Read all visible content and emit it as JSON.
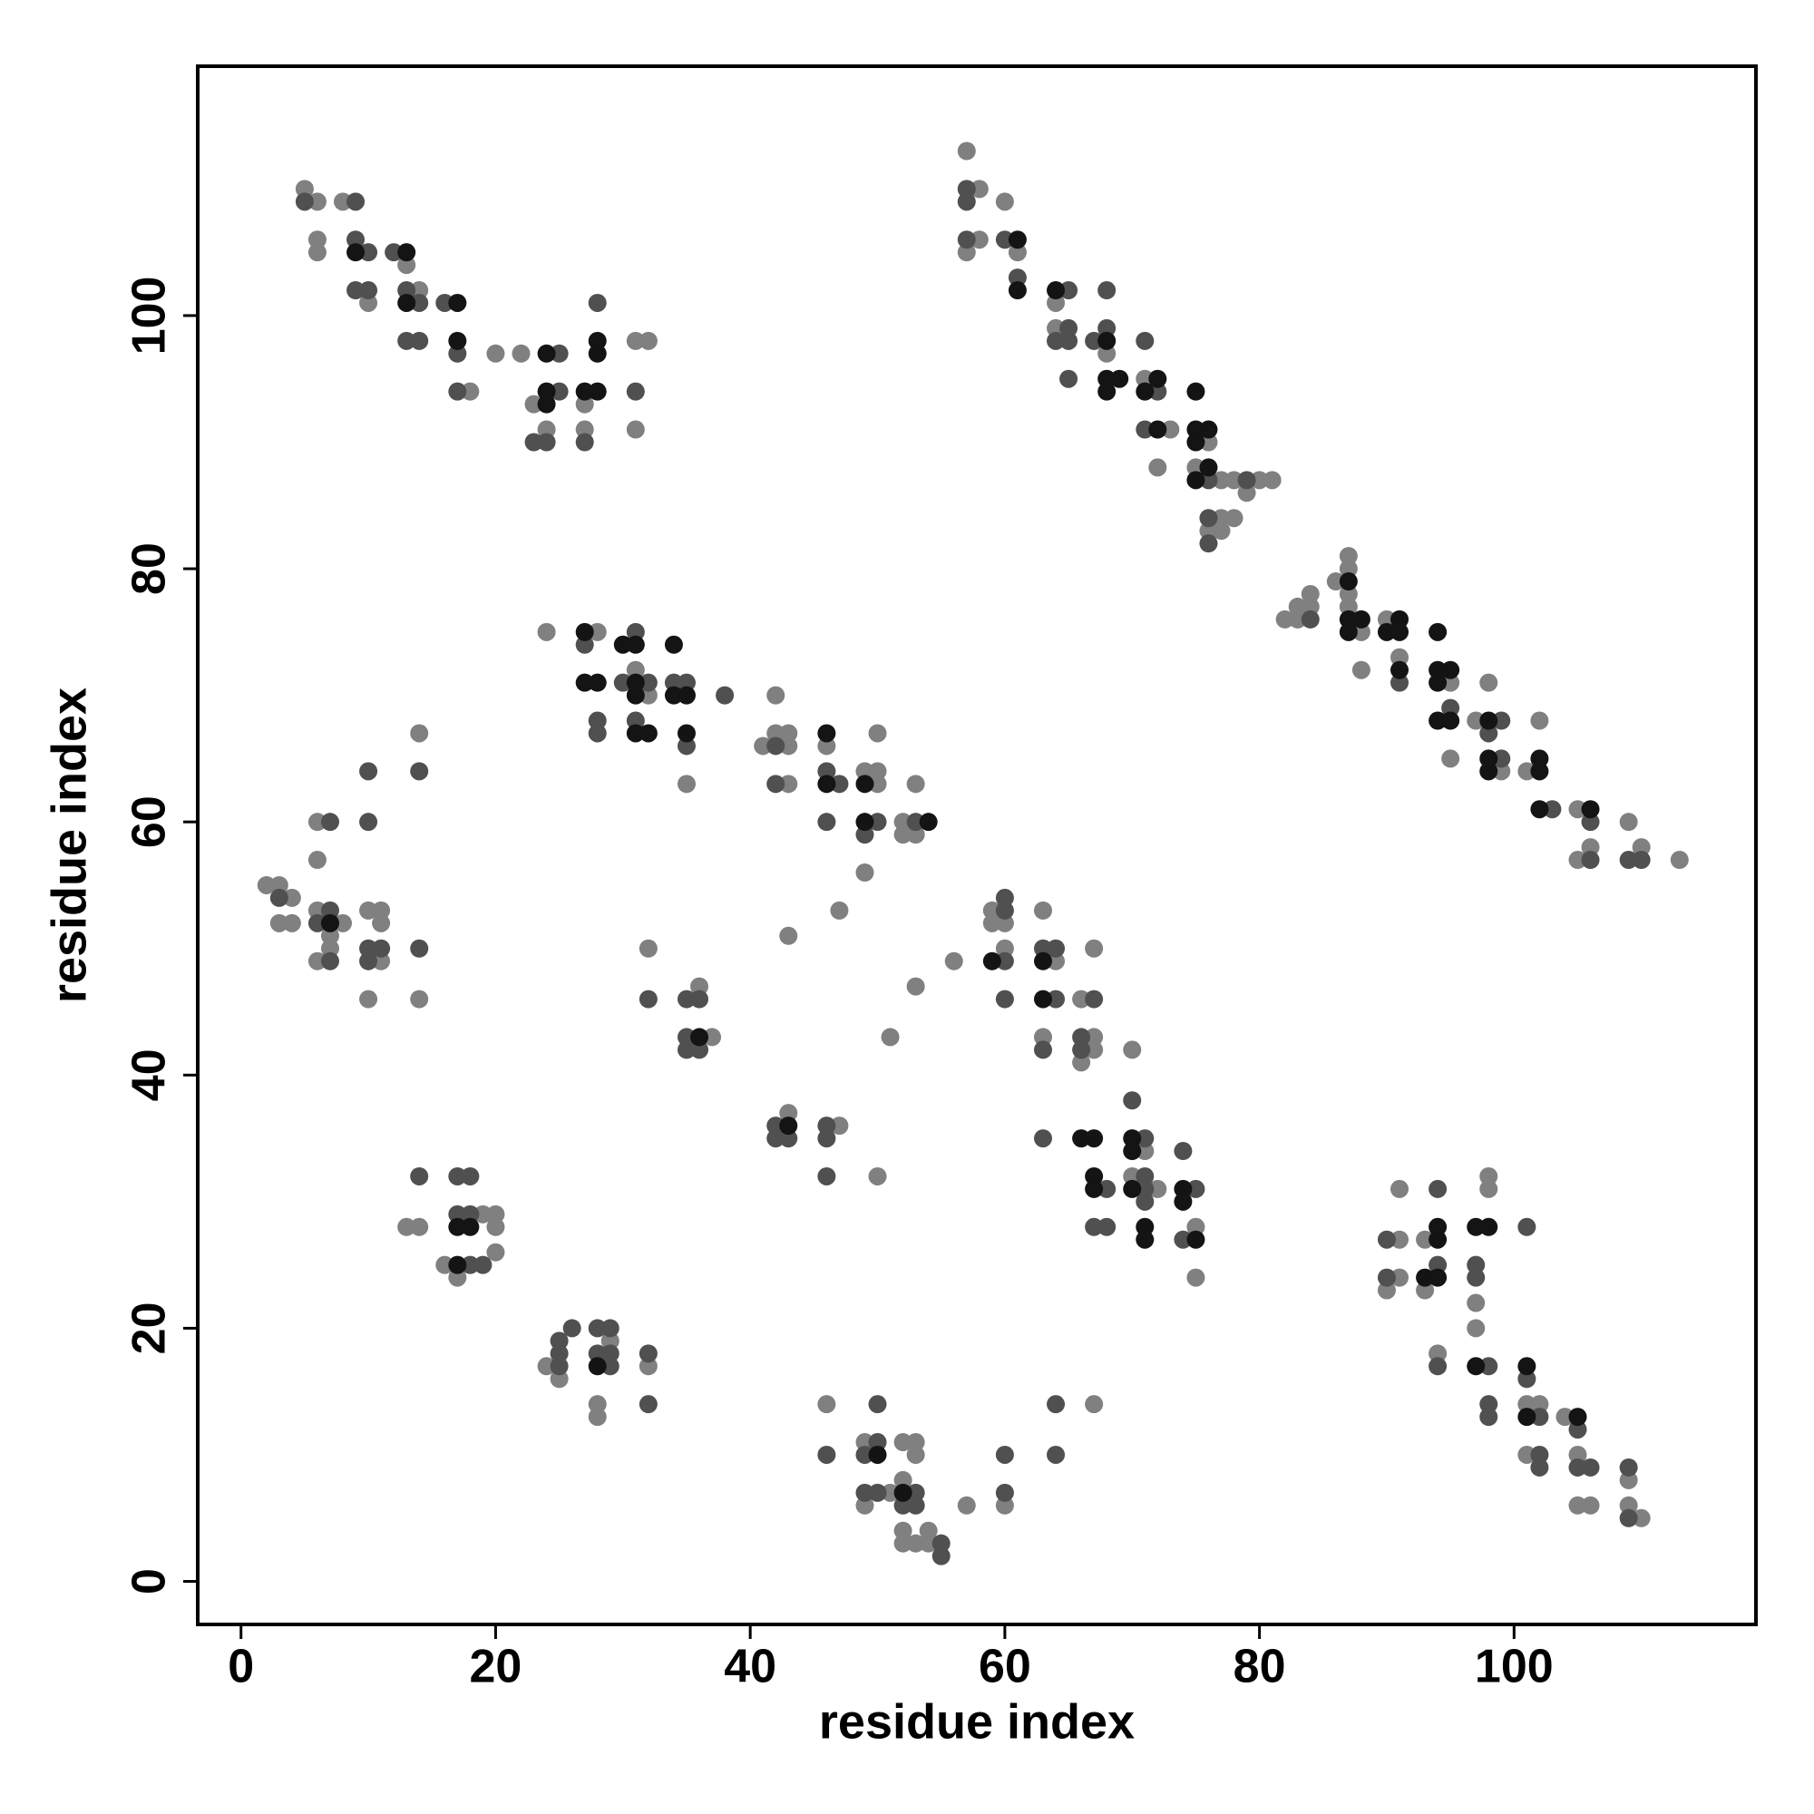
{
  "chart_data": {
    "type": "scatter",
    "x_label": "residue index",
    "y_label": "residue index",
    "xlim": [
      -3.4,
      119
    ],
    "ylim": [
      -3.4,
      119.7
    ],
    "xticks": [
      0,
      20,
      40,
      60,
      80,
      100
    ],
    "yticks": [
      0,
      20,
      40,
      60,
      80,
      100
    ],
    "series": [
      {
        "color": "#808080",
        "x": [
          5,
          6,
          8,
          6,
          6,
          13,
          10,
          14,
          18,
          20,
          22,
          23,
          24,
          27,
          27,
          31,
          32,
          31,
          57,
          58,
          60,
          57,
          58,
          61,
          64,
          64,
          68,
          71,
          73,
          72,
          76,
          75,
          77,
          78,
          80,
          81,
          79,
          77,
          78,
          76,
          77,
          82,
          83,
          83,
          84,
          84,
          86,
          87,
          87,
          87,
          87,
          88,
          88,
          90,
          91,
          95,
          95,
          97,
          98,
          99,
          101,
          102,
          105,
          106,
          105,
          109,
          110,
          113,
          24,
          28,
          31,
          32,
          35,
          42,
          41,
          42,
          43,
          43,
          43,
          46,
          49,
          50,
          50,
          50,
          49,
          47,
          52,
          52,
          53,
          53,
          2,
          3,
          4,
          3,
          4,
          6,
          8,
          7,
          7,
          6,
          6,
          6,
          10,
          11,
          11,
          11,
          10,
          14,
          14,
          32,
          36,
          37,
          43,
          43,
          47,
          50,
          51,
          53,
          56,
          59,
          59,
          60,
          60,
          63,
          64,
          66,
          67,
          63,
          67,
          66,
          67,
          70,
          71,
          70,
          72,
          75,
          75,
          13,
          14,
          19,
          20,
          20,
          20,
          16,
          17,
          24,
          25,
          29,
          32,
          28,
          28,
          46,
          49,
          52,
          53,
          53,
          51,
          52,
          49,
          52,
          52,
          53,
          54,
          54,
          57,
          60,
          67,
          91,
          91,
          91,
          90,
          93,
          93,
          98,
          98,
          97,
          97,
          94,
          101,
          102,
          104,
          101,
          105,
          109,
          105,
          106,
          109,
          110
        ],
        "y": [
          110,
          109,
          109,
          106,
          105,
          104,
          101,
          102,
          94,
          97,
          97,
          93,
          91,
          93,
          91,
          98,
          98,
          91,
          113,
          110,
          109,
          105,
          106,
          105,
          101,
          99,
          97,
          95,
          91,
          88,
          90,
          88,
          87,
          87,
          87,
          87,
          86,
          84,
          84,
          83,
          83,
          76,
          76,
          77,
          77,
          78,
          79,
          81,
          80,
          78,
          77,
          75,
          72,
          76,
          73,
          71,
          65,
          68,
          71,
          64,
          64,
          68,
          61,
          58,
          57,
          60,
          58,
          57,
          75,
          75,
          72,
          70,
          63,
          70,
          66,
          67,
          67,
          66,
          63,
          66,
          64,
          64,
          63,
          67,
          56,
          53,
          60,
          59,
          59,
          63,
          55,
          55,
          54,
          52,
          52,
          53,
          52,
          51,
          50,
          49,
          57,
          60,
          53,
          53,
          49,
          52,
          46,
          67,
          46,
          50,
          47,
          43,
          51,
          37,
          36,
          32,
          43,
          47,
          49,
          53,
          52,
          52,
          50,
          53,
          49,
          46,
          50,
          43,
          43,
          41,
          42,
          42,
          34,
          32,
          31,
          28,
          24,
          28,
          28,
          29,
          29,
          28,
          26,
          25,
          24,
          17,
          16,
          19,
          17,
          14,
          13,
          14,
          11,
          11,
          11,
          10,
          7,
          8,
          6,
          4,
          3,
          3,
          4,
          3,
          6,
          6,
          14,
          31,
          27,
          24,
          23,
          27,
          23,
          31,
          32,
          22,
          20,
          18,
          14,
          14,
          13,
          10,
          10,
          8,
          6,
          6,
          6,
          5
        ]
      },
      {
        "color": "#505050",
        "x": [
          5,
          9,
          9,
          10,
          12,
          9,
          10,
          13,
          14,
          16,
          13,
          14,
          17,
          17,
          25,
          25,
          23,
          24,
          27,
          28,
          31,
          57,
          57,
          57,
          60,
          61,
          65,
          68,
          65,
          64,
          65,
          67,
          68,
          65,
          71,
          72,
          71,
          76,
          79,
          76,
          76,
          84,
          91,
          95,
          99,
          98,
          99,
          103,
          106,
          106,
          109,
          110,
          27,
          31,
          30,
          32,
          34,
          35,
          38,
          28,
          28,
          31,
          35,
          42,
          42,
          46,
          47,
          46,
          50,
          49,
          53,
          3,
          7,
          6,
          7,
          10,
          10,
          7,
          10,
          11,
          10,
          14,
          14,
          32,
          35,
          36,
          35,
          35,
          36,
          42,
          42,
          43,
          46,
          46,
          46,
          60,
          60,
          60,
          60,
          63,
          64,
          64,
          67,
          63,
          66,
          66,
          63,
          70,
          71,
          68,
          71,
          71,
          71,
          74,
          75,
          67,
          68,
          74,
          14,
          17,
          18,
          17,
          18,
          18,
          19,
          26,
          25,
          25,
          25,
          28,
          29,
          28,
          29,
          29,
          32,
          32,
          46,
          50,
          49,
          50,
          49,
          50,
          53,
          52,
          53,
          55,
          55,
          60,
          60,
          64,
          64,
          90,
          90,
          94,
          94,
          97,
          97,
          94,
          98,
          101,
          101,
          98,
          98,
          102,
          105,
          102,
          102,
          105,
          106,
          109,
          109
        ],
        "y": [
          109,
          109,
          106,
          105,
          105,
          102,
          102,
          102,
          101,
          101,
          98,
          98,
          97,
          94,
          97,
          94,
          90,
          90,
          90,
          101,
          94,
          110,
          109,
          106,
          106,
          103,
          102,
          102,
          99,
          98,
          98,
          98,
          99,
          95,
          98,
          94,
          91,
          87,
          87,
          84,
          82,
          76,
          71,
          69,
          68,
          67,
          65,
          61,
          60,
          57,
          57,
          57,
          74,
          75,
          71,
          71,
          71,
          71,
          70,
          68,
          67,
          68,
          66,
          66,
          63,
          64,
          63,
          60,
          60,
          59,
          60,
          54,
          53,
          52,
          49,
          64,
          60,
          60,
          50,
          50,
          49,
          64,
          50,
          46,
          46,
          46,
          43,
          42,
          42,
          36,
          35,
          35,
          36,
          35,
          32,
          53,
          54,
          49,
          46,
          50,
          50,
          46,
          46,
          42,
          43,
          42,
          35,
          38,
          35,
          31,
          32,
          31,
          30,
          34,
          31,
          28,
          28,
          27,
          32,
          32,
          32,
          29,
          29,
          25,
          25,
          20,
          19,
          18,
          17,
          20,
          20,
          18,
          18,
          17,
          18,
          14,
          10,
          11,
          10,
          14,
          7,
          7,
          7,
          6,
          6,
          3,
          2,
          10,
          7,
          14,
          10,
          27,
          24,
          31,
          25,
          25,
          24,
          17,
          17,
          28,
          16,
          14,
          13,
          13,
          12,
          10,
          9,
          9,
          9,
          9,
          5
        ]
      },
      {
        "color": "#141414",
        "x": [
          9,
          13,
          13,
          17,
          17,
          24,
          24,
          24,
          27,
          28,
          28,
          28,
          61,
          61,
          64,
          68,
          68,
          69,
          68,
          72,
          71,
          72,
          75,
          75,
          76,
          75,
          76,
          75,
          87,
          87,
          87,
          88,
          90,
          91,
          91,
          91,
          94,
          94,
          94,
          95,
          94,
          95,
          98,
          98,
          98,
          102,
          102,
          102,
          106,
          27,
          30,
          31,
          34,
          27,
          28,
          31,
          31,
          34,
          35,
          31,
          32,
          35,
          46,
          46,
          49,
          49,
          54,
          7,
          36,
          43,
          59,
          63,
          63,
          66,
          67,
          70,
          70,
          67,
          67,
          70,
          74,
          74,
          71,
          71,
          75,
          17,
          18,
          17,
          28,
          50,
          52,
          93,
          94,
          94,
          94,
          97,
          98,
          97,
          101,
          101,
          105
        ],
        "y": [
          105,
          105,
          101,
          101,
          98,
          97,
          94,
          93,
          94,
          94,
          98,
          97,
          106,
          102,
          102,
          98,
          95,
          95,
          94,
          95,
          94,
          91,
          94,
          91,
          91,
          90,
          88,
          87,
          79,
          76,
          75,
          76,
          75,
          76,
          75,
          72,
          75,
          72,
          71,
          72,
          68,
          68,
          68,
          65,
          64,
          65,
          64,
          61,
          61,
          75,
          74,
          74,
          74,
          71,
          71,
          71,
          70,
          70,
          70,
          67,
          67,
          67,
          67,
          63,
          63,
          60,
          60,
          52,
          43,
          36,
          49,
          49,
          46,
          35,
          35,
          35,
          34,
          32,
          31,
          31,
          31,
          30,
          28,
          27,
          27,
          28,
          28,
          25,
          17,
          10,
          7,
          24,
          24,
          28,
          27,
          28,
          28,
          17,
          17,
          13,
          13
        ]
      }
    ]
  }
}
